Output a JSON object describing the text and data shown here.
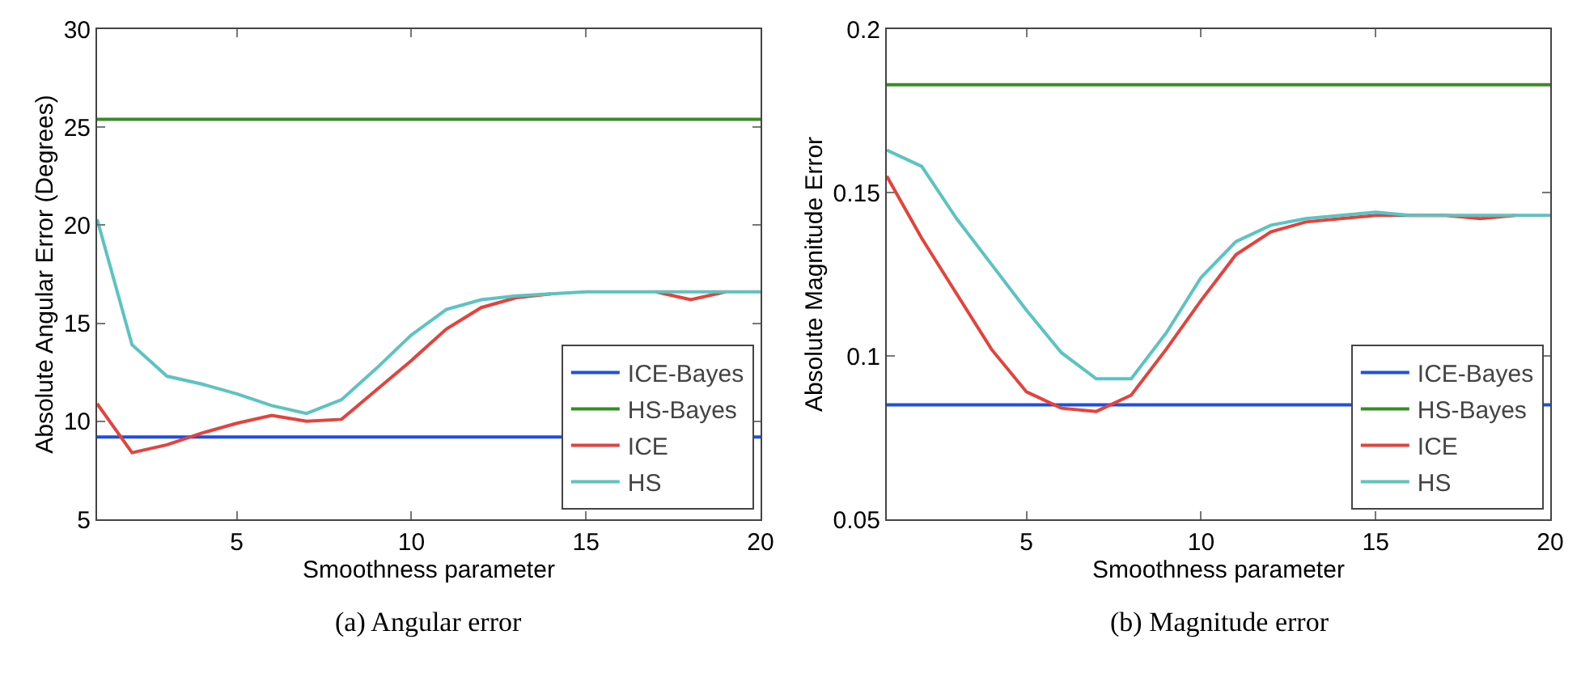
{
  "chart_data": [
    {
      "type": "line",
      "xlabel": "Smoothness parameter",
      "ylabel": "Absolute Angular Error (Degrees)",
      "xlim": [
        1,
        20
      ],
      "xticks": [
        5,
        10,
        15,
        20
      ],
      "ylim": [
        5,
        30
      ],
      "yticks": [
        5,
        10,
        15,
        20,
        25,
        30
      ],
      "grid": false,
      "legend": "bottom right",
      "marker": "none",
      "line_style": "solid",
      "annotations": [
        "(a) Angular error"
      ],
      "series": [
        {
          "name": "ICE-Bayes",
          "color": "#1f4fe0",
          "x": [
            1,
            20
          ],
          "values": [
            9.2,
            9.2
          ]
        },
        {
          "name": "HS-Bayes",
          "color": "#3a8a2a",
          "x": [
            1,
            20
          ],
          "values": [
            25.4,
            25.4
          ]
        },
        {
          "name": "ICE",
          "color": "#e8403a",
          "x": [
            1,
            2,
            3,
            4,
            5,
            6,
            7,
            8,
            9,
            10,
            11,
            12,
            13,
            14,
            15,
            16,
            17,
            18,
            19
          ],
          "values": [
            10.9,
            8.4,
            8.8,
            9.4,
            9.9,
            10.3,
            10.0,
            10.1,
            11.6,
            13.1,
            14.7,
            15.8,
            16.3,
            16.5,
            null,
            null,
            16.6,
            16.2,
            16.6
          ]
        },
        {
          "name": "HS",
          "color": "#5cc3c3",
          "x": [
            1,
            2,
            3,
            4,
            5,
            6,
            7,
            8,
            9,
            10,
            11,
            12,
            13,
            14,
            15,
            16,
            17,
            18,
            19,
            20
          ],
          "values": [
            20.3,
            13.9,
            12.3,
            11.9,
            11.4,
            10.8,
            10.4,
            11.1,
            12.7,
            14.4,
            15.7,
            16.2,
            16.4,
            16.5,
            16.6,
            16.6,
            16.6,
            16.6,
            16.6,
            16.6
          ]
        }
      ]
    },
    {
      "type": "line",
      "xlabel": "Smoothness parameter",
      "ylabel": "Absolute Magnitude Error",
      "xlim": [
        1,
        20
      ],
      "xticks": [
        5,
        10,
        15,
        20
      ],
      "ylim": [
        0.05,
        0.2
      ],
      "yticks": [
        0.05,
        0.1,
        0.15,
        0.2
      ],
      "grid": false,
      "legend": "bottom right",
      "marker": "none",
      "line_style": "solid",
      "annotations": [
        "(b) Magnitude error"
      ],
      "series": [
        {
          "name": "ICE-Bayes",
          "color": "#1f4fe0",
          "x": [
            1,
            20
          ],
          "values": [
            0.085,
            0.085
          ]
        },
        {
          "name": "HS-Bayes",
          "color": "#3a8a2a",
          "x": [
            1,
            20
          ],
          "values": [
            0.183,
            0.183
          ]
        },
        {
          "name": "ICE",
          "color": "#e8403a",
          "x": [
            1,
            2,
            3,
            4,
            5,
            6,
            7,
            8,
            9,
            10,
            11,
            12,
            13,
            14,
            15,
            16,
            17,
            18,
            19
          ],
          "values": [
            0.155,
            0.136,
            0.119,
            0.102,
            0.089,
            0.084,
            0.083,
            0.088,
            0.102,
            0.117,
            0.131,
            0.138,
            0.141,
            0.142,
            0.143,
            0.143,
            0.143,
            0.142,
            0.143
          ]
        },
        {
          "name": "HS",
          "color": "#5cc3c3",
          "x": [
            1,
            2,
            3,
            4,
            5,
            6,
            7,
            8,
            9,
            10,
            11,
            12,
            13,
            14,
            15,
            16,
            17,
            18,
            19,
            20
          ],
          "values": [
            0.163,
            0.158,
            0.142,
            0.128,
            0.114,
            0.101,
            0.093,
            0.093,
            0.107,
            0.124,
            0.135,
            0.14,
            0.142,
            0.143,
            0.144,
            0.143,
            0.143,
            0.143,
            0.143,
            0.143
          ]
        }
      ]
    }
  ]
}
